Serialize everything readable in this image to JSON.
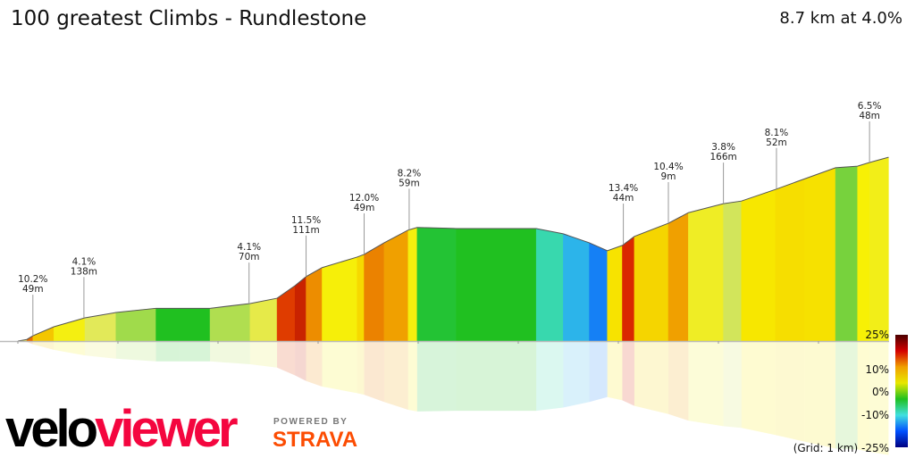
{
  "header": {
    "title": "100 greatest Climbs - Rundlestone",
    "summary": "8.7 km at 4.0%"
  },
  "chart_data": {
    "type": "area",
    "xlabel": "",
    "ylabel": "",
    "distance_km": [
      0,
      0.09,
      0.15,
      0.36,
      0.67,
      0.98,
      1.38,
      1.61,
      1.92,
      2.32,
      2.59,
      2.77,
      2.88,
      3.04,
      3.39,
      3.46,
      3.66,
      3.9,
      3.99,
      4.38,
      5.18,
      5.45,
      5.71,
      5.89,
      6.04,
      6.16,
      6.5,
      6.7,
      7.05,
      7.23,
      7.57,
      7.86,
      8.17,
      8.39,
      8.51,
      8.7
    ],
    "elevation_gain_m": [
      0,
      3,
      10,
      27,
      44,
      54,
      62,
      62,
      62,
      71,
      81,
      105,
      122,
      139,
      159,
      164,
      186,
      210,
      215,
      213,
      213,
      203,
      186,
      171,
      181,
      198,
      223,
      243,
      260,
      265,
      287,
      307,
      328,
      331,
      338,
      348
    ],
    "xlim": [
      0,
      8.7
    ],
    "grid": "1 km",
    "annotations": [
      {
        "km": 0.15,
        "gradient": "10.2%",
        "length": "49m"
      },
      {
        "km": 0.66,
        "gradient": "4.1%",
        "length": "138m"
      },
      {
        "km": 2.31,
        "gradient": "4.1%",
        "length": "70m"
      },
      {
        "km": 2.88,
        "gradient": "11.5%",
        "length": "111m"
      },
      {
        "km": 3.46,
        "gradient": "12.0%",
        "length": "49m"
      },
      {
        "km": 3.91,
        "gradient": "8.2%",
        "length": "59m"
      },
      {
        "km": 6.05,
        "gradient": "13.4%",
        "length": "44m"
      },
      {
        "km": 6.5,
        "gradient": "10.4%",
        "length": "9m"
      },
      {
        "km": 7.05,
        "gradient": "3.8%",
        "length": "166m"
      },
      {
        "km": 7.58,
        "gradient": "8.1%",
        "length": "52m"
      },
      {
        "km": 8.51,
        "gradient": "6.5%",
        "length": "48m"
      }
    ],
    "legend": {
      "placement": "bottom-right",
      "labels": [
        "25%",
        "10%",
        "0%",
        "-10%",
        "(Grid: 1 km) -25%"
      ],
      "colors": [
        "#4a0000",
        "#d40000",
        "#f0a000",
        "#e8e800",
        "#20c020",
        "#40e0e0",
        "#0050ff",
        "#000080"
      ]
    }
  },
  "branding": {
    "velo": "velo",
    "viewer": "viewer",
    "powered": "POWERED BY",
    "strava": "STRAVA"
  }
}
